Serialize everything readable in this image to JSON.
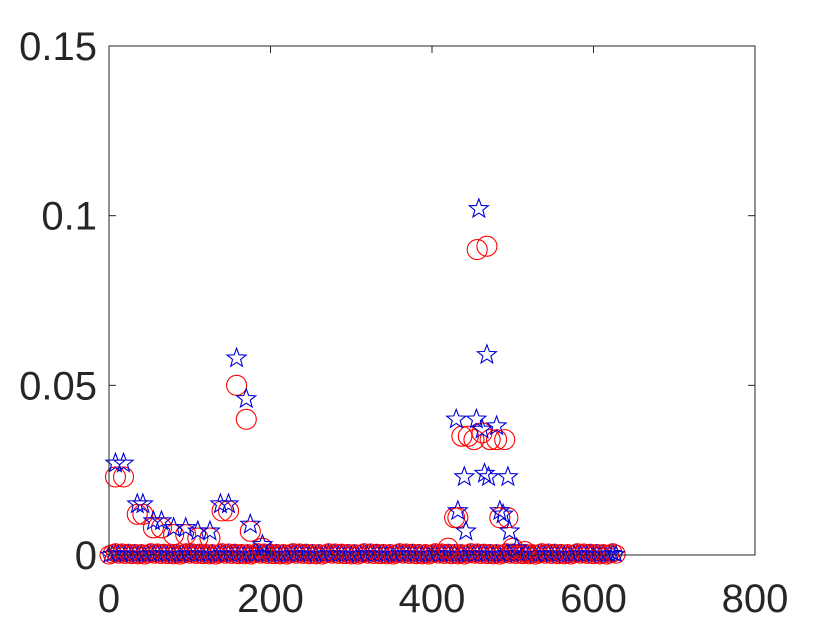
{
  "chart_data": {
    "type": "scatter",
    "title": "",
    "xlabel": "",
    "ylabel": "",
    "xlim": [
      0,
      800
    ],
    "ylim": [
      0,
      0.15
    ],
    "xticks": [
      0,
      200,
      400,
      600,
      800
    ],
    "yticks": [
      0,
      0.05,
      0.1,
      0.15
    ],
    "xtick_labels": [
      "0",
      "200",
      "400",
      "600",
      "800"
    ],
    "ytick_labels": [
      "0",
      "0.05",
      "0.1",
      "0.15"
    ],
    "grid": false,
    "baseline_x_range": [
      0,
      630
    ],
    "series": [
      {
        "marker": "circle",
        "color": "#ff0000",
        "points": [
          [
            8,
            0.023
          ],
          [
            18,
            0.023
          ],
          [
            35,
            0.012
          ],
          [
            42,
            0.012
          ],
          [
            55,
            0.008
          ],
          [
            65,
            0.008
          ],
          [
            80,
            0.006
          ],
          [
            95,
            0.006
          ],
          [
            110,
            0.005
          ],
          [
            125,
            0.005
          ],
          [
            140,
            0.013
          ],
          [
            148,
            0.013
          ],
          [
            158,
            0.05
          ],
          [
            170,
            0.04
          ],
          [
            175,
            0.007
          ],
          [
            190,
            0.002
          ],
          [
            420,
            0.002
          ],
          [
            428,
            0.011
          ],
          [
            432,
            0.011
          ],
          [
            437,
            0.035
          ],
          [
            445,
            0.035
          ],
          [
            452,
            0.034
          ],
          [
            456,
            0.09
          ],
          [
            462,
            0.036
          ],
          [
            468,
            0.091
          ],
          [
            472,
            0.034
          ],
          [
            480,
            0.034
          ],
          [
            484,
            0.011
          ],
          [
            490,
            0.034
          ],
          [
            494,
            0.011
          ],
          [
            500,
            0.002
          ],
          [
            515,
            0.001
          ]
        ]
      },
      {
        "marker": "star",
        "color": "#0000d8",
        "points": [
          [
            8,
            0.027
          ],
          [
            18,
            0.027
          ],
          [
            35,
            0.015
          ],
          [
            42,
            0.015
          ],
          [
            55,
            0.01
          ],
          [
            65,
            0.01
          ],
          [
            80,
            0.008
          ],
          [
            95,
            0.008
          ],
          [
            110,
            0.007
          ],
          [
            125,
            0.007
          ],
          [
            138,
            0.015
          ],
          [
            148,
            0.015
          ],
          [
            158,
            0.058
          ],
          [
            170,
            0.046
          ],
          [
            175,
            0.009
          ],
          [
            190,
            0.003
          ],
          [
            430,
            0.04
          ],
          [
            432,
            0.013
          ],
          [
            440,
            0.023
          ],
          [
            442,
            0.007
          ],
          [
            455,
            0.04
          ],
          [
            458,
            0.102
          ],
          [
            462,
            0.037
          ],
          [
            465,
            0.024
          ],
          [
            468,
            0.059
          ],
          [
            470,
            0.023
          ],
          [
            480,
            0.038
          ],
          [
            484,
            0.013
          ],
          [
            488,
            0.012
          ],
          [
            494,
            0.023
          ],
          [
            496,
            0.007
          ],
          [
            505,
            0.002
          ]
        ]
      }
    ]
  }
}
